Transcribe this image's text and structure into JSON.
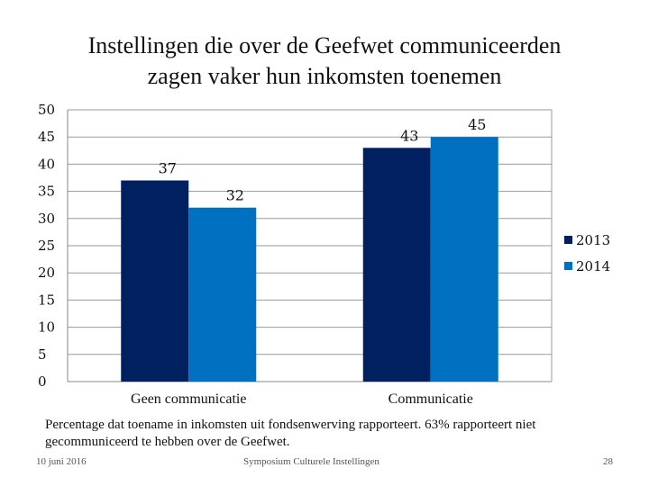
{
  "slide": {
    "title_line1": "Instellingen die over de Geefwet communiceerden",
    "title_line2": "zagen vaker hun inkomsten toenemen",
    "note": "Percentage dat toename in inkomsten uit fondsenwerving rapporteert. 63% rapporteert niet gecommuniceerd te hebben over de Geefwet.",
    "footer_date": "10 juni 2016",
    "footer_center": "Symposium Culturele Instellingen",
    "footer_page": "28"
  },
  "chart_data": {
    "type": "bar",
    "categories": [
      "Geen communicatie",
      "Communicatie"
    ],
    "series": [
      {
        "name": "2013",
        "values": [
          37,
          43
        ],
        "color": "#002060"
      },
      {
        "name": "2014",
        "values": [
          32,
          45
        ],
        "color": "#0070c0"
      }
    ],
    "yticks": [
      0,
      5,
      10,
      15,
      20,
      25,
      30,
      35,
      40,
      45,
      50
    ],
    "ylim": [
      0,
      50
    ],
    "grid": true,
    "legend_position": "right",
    "data_labels": true
  }
}
